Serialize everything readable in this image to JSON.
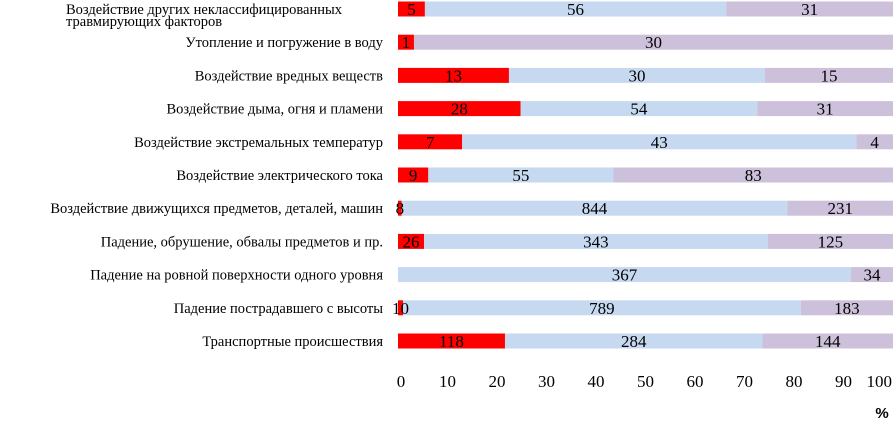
{
  "chart_data": {
    "type": "bar",
    "orientation": "horizontal",
    "stacked": "percent",
    "categories": [
      [
        "Воздействие других неклассифицированных",
        "травмирующих факторов"
      ],
      [
        "Утопление и погружение в воду"
      ],
      [
        "Воздействие вредных веществ"
      ],
      [
        "Воздействие дыма, огня и пламени"
      ],
      [
        "Воздействие экстремальных температур"
      ],
      [
        "Воздействие электрического тока"
      ],
      [
        "Воздействие движущихся предметов, деталей, машин"
      ],
      [
        "Падение, обрушение, обвалы предметов и пр."
      ],
      [
        "Падение на ровной поверхности одного уровня"
      ],
      [
        "Падение пострадавшего с высоты"
      ],
      [
        "Транспортные происшествия"
      ]
    ],
    "series": [
      {
        "color": "#ff0000",
        "values": [
          5,
          1,
          13,
          28,
          7,
          9,
          8,
          26,
          0,
          10,
          118
        ],
        "labels": [
          "5",
          "1",
          "13",
          "28",
          "7",
          "9",
          "8",
          "26",
          "",
          "10",
          "118"
        ]
      },
      {
        "color": "#c6d9f1",
        "values": [
          56,
          0,
          30,
          54,
          43,
          55,
          844,
          343,
          367,
          789,
          284
        ],
        "labels": [
          "56",
          "",
          "30",
          "54",
          "43",
          "55",
          "844",
          "343",
          "367",
          "789",
          "284"
        ]
      },
      {
        "color": "#ccc0da",
        "values": [
          31,
          30,
          15,
          31,
          4,
          83,
          231,
          125,
          34,
          183,
          144
        ],
        "labels": [
          "31",
          "30",
          "15",
          "31",
          "4",
          "83",
          "231",
          "125",
          "34",
          "183",
          "144"
        ]
      }
    ],
    "xlim": [
      0,
      100
    ],
    "xticks": [
      "0",
      "10",
      "20",
      "30",
      "40",
      "50",
      "60",
      "70",
      "80",
      "90",
      "100"
    ],
    "xlabel": "%",
    "legend": "none",
    "grid": false
  }
}
